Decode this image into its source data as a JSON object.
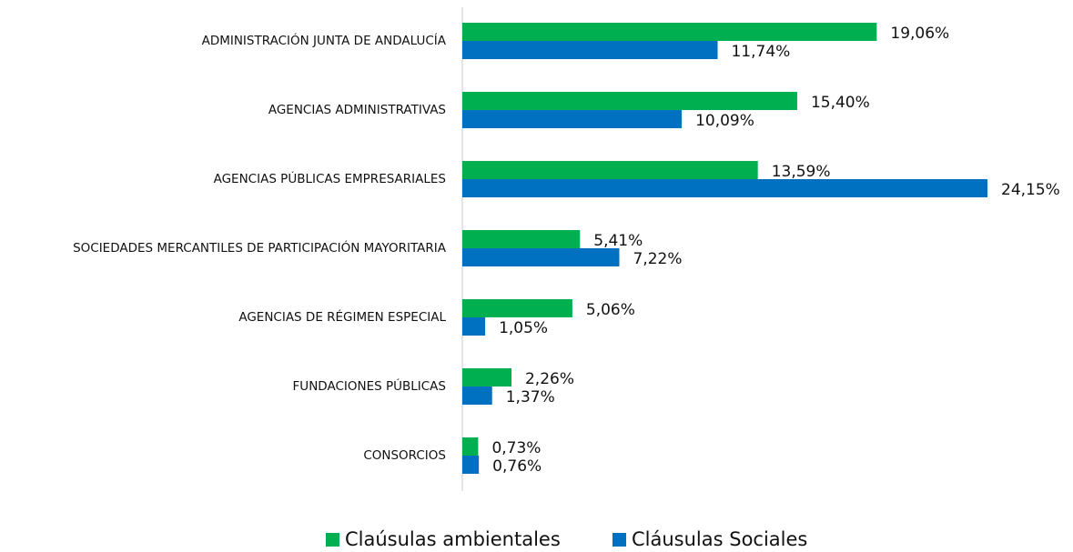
{
  "chart_data": {
    "type": "hbar",
    "categories": [
      "ADMINISTRACIÓN JUNTA DE ANDALUCÍA",
      "AGENCIAS ADMINISTRATIVAS",
      "AGENCIAS PÚBLICAS EMPRESARIALES",
      "SOCIEDADES MERCANTILES DE PARTICIPACIÓN MAYORITARIA",
      "AGENCIAS DE RÉGIMEN ESPECIAL",
      "FUNDACIONES PÚBLICAS",
      "CONSORCIOS"
    ],
    "series": [
      {
        "name": "Claúsulas ambientales",
        "color": "#00b050",
        "values": [
          19.06,
          15.4,
          13.59,
          5.41,
          5.06,
          2.26,
          0.73
        ],
        "value_labels": [
          "19,06%",
          "15,40%",
          "13,59%",
          "5,41%",
          "5,06%",
          "2,26%",
          "0,73%"
        ]
      },
      {
        "name": "Cláusulas Sociales",
        "color": "#0070c0",
        "values": [
          11.74,
          10.09,
          24.15,
          7.22,
          1.05,
          1.37,
          0.76
        ],
        "value_labels": [
          "11,74%",
          "10,09%",
          "24,15%",
          "7,22%",
          "1,05%",
          "1,37%",
          "0,76%"
        ]
      }
    ],
    "legend": "bottom"
  }
}
